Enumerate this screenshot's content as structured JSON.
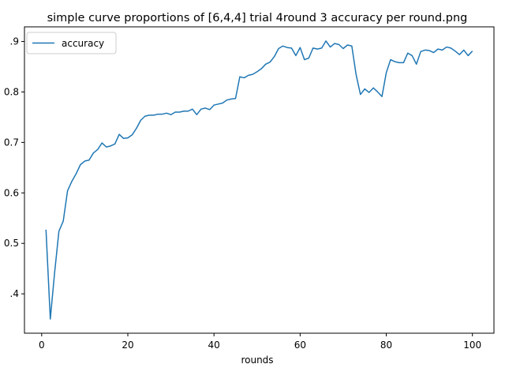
{
  "chart_data": {
    "type": "line",
    "title": "simple curve proportions of [6,4,4] trial 4round 3 accuracy per round.png",
    "xlabel": "rounds",
    "ylabel": "",
    "xlim": [
      -4.0,
      105.0
    ],
    "ylim": [
      0.322,
      0.929
    ],
    "xticks": [
      0,
      20,
      40,
      60,
      80,
      100
    ],
    "xtick_labels": [
      "0",
      "20",
      "40",
      "60",
      "80",
      "100"
    ],
    "yticks": [
      0.4,
      0.5,
      0.6,
      0.7,
      0.8,
      0.9
    ],
    "ytick_labels": [
      ".4",
      "0.5",
      "0.6",
      "0.7",
      "0.8",
      ".9"
    ],
    "grid": false,
    "legend_position": "upper-left",
    "series": [
      {
        "name": "accuracy",
        "color": "#1f77b4",
        "x": [
          1,
          2,
          3,
          4,
          5,
          6,
          7,
          8,
          9,
          10,
          11,
          12,
          13,
          14,
          15,
          16,
          17,
          18,
          19,
          20,
          21,
          22,
          23,
          24,
          25,
          26,
          27,
          28,
          29,
          30,
          31,
          32,
          33,
          34,
          35,
          36,
          37,
          38,
          39,
          40,
          41,
          42,
          43,
          44,
          45,
          46,
          47,
          48,
          49,
          50,
          51,
          52,
          53,
          54,
          55,
          56,
          57,
          58,
          59,
          60,
          61,
          62,
          63,
          64,
          65,
          66,
          67,
          68,
          69,
          70,
          71,
          72,
          73,
          74,
          75,
          76,
          77,
          78,
          79,
          80,
          81,
          82,
          83,
          84,
          85,
          86,
          87,
          88,
          89,
          90,
          91,
          92,
          93,
          94,
          95,
          96,
          97,
          98,
          99,
          100
        ],
        "y": [
          0.527,
          0.35,
          0.442,
          0.524,
          0.544,
          0.604,
          0.623,
          0.638,
          0.656,
          0.663,
          0.665,
          0.679,
          0.686,
          0.699,
          0.691,
          0.693,
          0.697,
          0.716,
          0.708,
          0.709,
          0.715,
          0.728,
          0.744,
          0.752,
          0.754,
          0.754,
          0.756,
          0.756,
          0.758,
          0.755,
          0.76,
          0.76,
          0.762,
          0.762,
          0.766,
          0.755,
          0.766,
          0.768,
          0.765,
          0.774,
          0.776,
          0.778,
          0.784,
          0.786,
          0.787,
          0.83,
          0.828,
          0.833,
          0.835,
          0.84,
          0.846,
          0.855,
          0.859,
          0.87,
          0.886,
          0.891,
          0.888,
          0.887,
          0.872,
          0.888,
          0.864,
          0.867,
          0.887,
          0.885,
          0.887,
          0.901,
          0.889,
          0.896,
          0.894,
          0.886,
          0.893,
          0.891,
          0.834,
          0.795,
          0.806,
          0.799,
          0.808,
          0.8,
          0.791,
          0.838,
          0.864,
          0.86,
          0.858,
          0.858,
          0.877,
          0.872,
          0.855,
          0.88,
          0.883,
          0.882,
          0.878,
          0.885,
          0.883,
          0.889,
          0.887,
          0.881,
          0.874,
          0.883,
          0.872,
          0.881
        ]
      }
    ]
  }
}
